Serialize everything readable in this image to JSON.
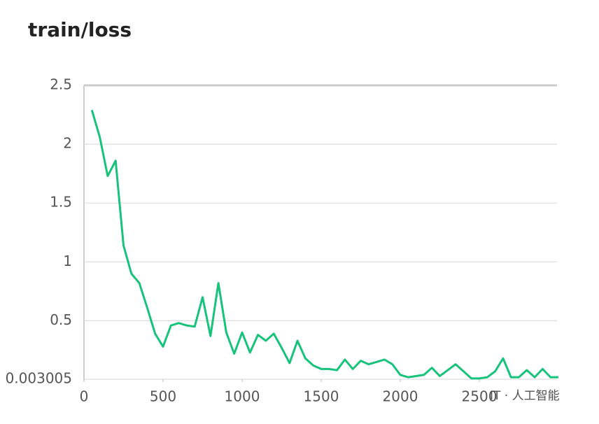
{
  "chart_data": {
    "type": "line",
    "title": "train/loss",
    "x": [
      50,
      100,
      150,
      200,
      250,
      300,
      350,
      400,
      450,
      500,
      550,
      600,
      650,
      700,
      750,
      800,
      850,
      900,
      950,
      1000,
      1050,
      1100,
      1150,
      1200,
      1250,
      1300,
      1350,
      1400,
      1450,
      1500,
      1550,
      1600,
      1650,
      1700,
      1750,
      1800,
      1850,
      1900,
      1950,
      2000,
      2050,
      2100,
      2150,
      2200,
      2250,
      2300,
      2350,
      2400,
      2450,
      2500,
      2550,
      2600,
      2650,
      2700,
      2750,
      2800,
      2850,
      2900,
      2950,
      3000
    ],
    "series": [
      {
        "name": "train/loss",
        "color": "#17c37b",
        "values": [
          2.29,
          2.06,
          1.73,
          1.86,
          1.14,
          0.9,
          0.82,
          0.61,
          0.39,
          0.28,
          0.46,
          0.48,
          0.46,
          0.45,
          0.7,
          0.37,
          0.82,
          0.4,
          0.22,
          0.4,
          0.23,
          0.38,
          0.33,
          0.39,
          0.27,
          0.14,
          0.33,
          0.18,
          0.12,
          0.09,
          0.09,
          0.08,
          0.17,
          0.09,
          0.16,
          0.13,
          0.15,
          0.17,
          0.13,
          0.04,
          0.02,
          0.03,
          0.04,
          0.1,
          0.03,
          0.08,
          0.13,
          0.07,
          0.01,
          0.01,
          0.02,
          0.07,
          0.18,
          0.02,
          0.02,
          0.08,
          0.02,
          0.09,
          0.02,
          0.02
        ]
      }
    ],
    "xlim": [
      0,
      3000
    ],
    "xticks": [
      0,
      500,
      1000,
      1500,
      2000,
      2500
    ],
    "ylim": [
      0.003005,
      2.5
    ],
    "yticks": [
      0.003005,
      0.5,
      1,
      1.5,
      2,
      2.5
    ],
    "grid": true,
    "watermark": "IT · 人工智能"
  }
}
